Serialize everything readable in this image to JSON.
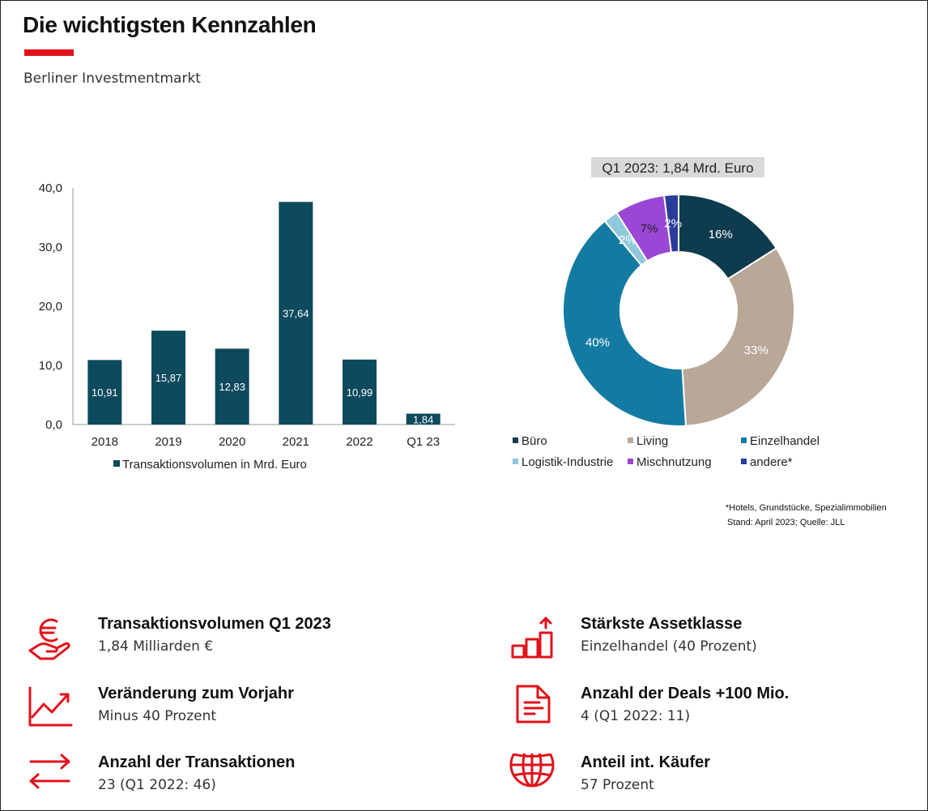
{
  "header": {
    "title": "Die wichtigsten Kennzahlen",
    "subtitle": "Berliner Investmentmarkt"
  },
  "colors": {
    "accent_red": "#e2121b",
    "bar": "#0d4a5e"
  },
  "chart_data": [
    {
      "type": "bar",
      "categories": [
        "2018",
        "2019",
        "2020",
        "2021",
        "2022",
        "Q1 23"
      ],
      "series": [
        {
          "name": "Transaktionsvolumen in Mrd. Euro",
          "values": [
            10.91,
            15.87,
            12.83,
            37.64,
            10.99,
            1.84
          ]
        }
      ],
      "data_labels": [
        "10,91",
        "15,87",
        "12,83",
        "37,64",
        "10,99",
        "1,84"
      ],
      "y_ticks": [
        "0,0",
        "10,0",
        "20,0",
        "30,0",
        "40,0"
      ],
      "ylim": [
        0,
        40
      ],
      "legend": "bottom",
      "grid": false
    },
    {
      "type": "pie",
      "title": "Q1 2023: 1,84 Mrd. Euro",
      "slices": [
        {
          "name": "Büro",
          "value": 16,
          "label": "16%",
          "color": "#0f3b4e"
        },
        {
          "name": "Living",
          "value": 33,
          "label": "33%",
          "color": "#b9a797"
        },
        {
          "name": "Einzelhandel",
          "value": 40,
          "label": "40%",
          "color": "#137ba2"
        },
        {
          "name": "Logistik-Industrie",
          "value": 2,
          "label": "2%",
          "color": "#8fc7db"
        },
        {
          "name": "Mischnutzung",
          "value": 7,
          "label": "7%",
          "color": "#9b47d6"
        },
        {
          "name": "andere*",
          "value": 2,
          "label": "2%",
          "color": "#283c9c"
        }
      ],
      "legend": "bottom",
      "donut": true
    }
  ],
  "footnotes": {
    "line1": "*Hotels, Grundstücke, Spezialimmobilien",
    "line2": "Stand: April 2023; Quelle: JLL"
  },
  "kpis": [
    {
      "icon": "euro-hand-icon",
      "label": "Transaktionsvolumen Q1 2023",
      "value": "1,84 Milliarden €"
    },
    {
      "icon": "trend-chart-icon",
      "label": "Veränderung zum Vorjahr",
      "value": "Minus 40 Prozent"
    },
    {
      "icon": "exchange-arrows-icon",
      "label": "Anzahl der Transaktionen",
      "value": "23 (Q1 2022: 46)"
    },
    {
      "icon": "growth-steps-icon",
      "label": "Stärkste Assetklasse",
      "value": "Einzelhandel (40 Prozent)"
    },
    {
      "icon": "document-icon",
      "label": "Anzahl der Deals +100 Mio.",
      "value": "4 (Q1 2022: 11)"
    },
    {
      "icon": "globe-icon",
      "label": "Anteil int. Käufer",
      "value": "57 Prozent"
    }
  ]
}
